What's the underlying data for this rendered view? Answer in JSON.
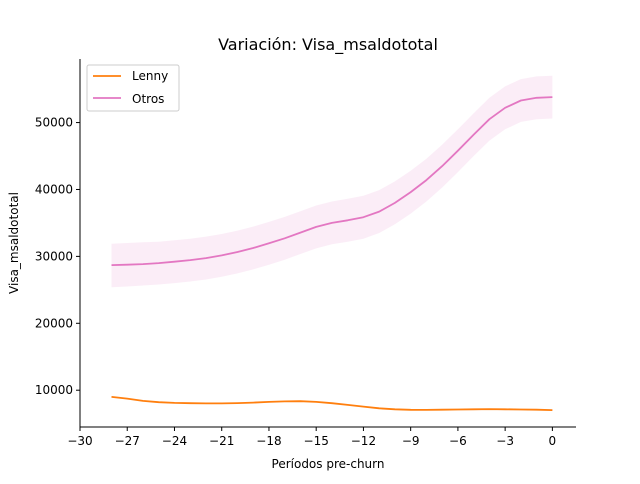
{
  "chart_data": {
    "type": "line",
    "title": "Variación: Visa_msaldototal",
    "xlabel": "Períodos pre-churn",
    "ylabel": "Visa_msaldototal",
    "xlim": [
      -30,
      1.5
    ],
    "ylim": [
      4500,
      59500
    ],
    "x_ticks": [
      -30,
      -27,
      -24,
      -21,
      -18,
      -15,
      -12,
      -9,
      -6,
      -3,
      0
    ],
    "x_tick_labels": [
      "−30",
      "−27",
      "−24",
      "−21",
      "−18",
      "−15",
      "−12",
      "−9",
      "−6",
      "−3",
      "0"
    ],
    "y_ticks": [
      10000,
      20000,
      30000,
      40000,
      50000
    ],
    "y_tick_labels": [
      "10000",
      "20000",
      "30000",
      "40000",
      "50000"
    ],
    "grid": false,
    "legend_position": "top-left",
    "x": [
      -28,
      -27,
      -26,
      -25,
      -24,
      -23,
      -22,
      -21,
      -20,
      -19,
      -18,
      -17,
      -16,
      -15,
      -14,
      -13,
      -12,
      -11,
      -10,
      -9,
      -8,
      -7,
      -6,
      -5,
      -4,
      -3,
      -2,
      -1,
      0
    ],
    "series": [
      {
        "name": "Lenny",
        "color": "#ff7f0e",
        "values": [
          9000,
          8750,
          8400,
          8200,
          8100,
          8050,
          8030,
          8030,
          8070,
          8150,
          8250,
          8330,
          8350,
          8250,
          8050,
          7800,
          7550,
          7300,
          7150,
          7070,
          7050,
          7080,
          7120,
          7150,
          7170,
          7150,
          7120,
          7080,
          7020
        ]
      },
      {
        "name": "Otros",
        "color": "#e377c2",
        "values": [
          28700,
          28750,
          28850,
          29000,
          29200,
          29450,
          29750,
          30150,
          30650,
          31250,
          31950,
          32700,
          33550,
          34400,
          35000,
          35400,
          35850,
          36700,
          38000,
          39600,
          41400,
          43500,
          45800,
          48200,
          50500,
          52200,
          53300,
          53700,
          53800
        ],
        "band_lower": [
          25400,
          25500,
          25650,
          25800,
          26000,
          26250,
          26550,
          26950,
          27450,
          28050,
          28750,
          29500,
          30350,
          31200,
          31800,
          32200,
          32650,
          33500,
          34800,
          36400,
          38200,
          40300,
          42600,
          45000,
          47300,
          49000,
          50100,
          50500,
          50600
        ],
        "band_upper": [
          31900,
          32000,
          32100,
          32200,
          32400,
          32650,
          32950,
          33350,
          33850,
          34450,
          35150,
          35900,
          36750,
          37600,
          38200,
          38600,
          39050,
          39900,
          41200,
          42800,
          44600,
          46700,
          49000,
          51400,
          53700,
          55400,
          56500,
          56900,
          57000
        ]
      }
    ]
  }
}
